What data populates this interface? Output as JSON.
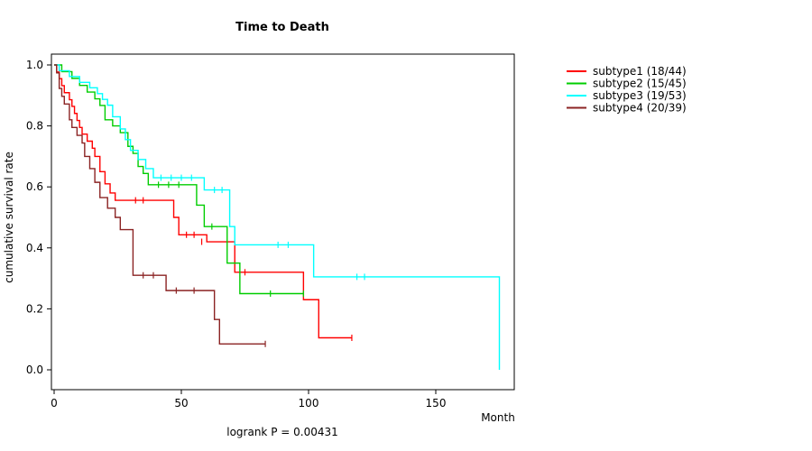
{
  "chart_data": {
    "type": "line",
    "subtype": "kaplan-meier-step-survival",
    "title": "Time to Death",
    "xlabel": "Month",
    "ylabel": "cumulative survival rate",
    "annotation": "logrank P = 0.00431",
    "xlim": [
      0,
      180
    ],
    "ylim": [
      0.0,
      1.0
    ],
    "x_ticks": [
      0,
      50,
      100,
      150
    ],
    "y_ticks": [
      0.0,
      0.2,
      0.4,
      0.6,
      0.8,
      1.0
    ],
    "grid": false,
    "legend_position": "right-outside",
    "axis_color": "#000000",
    "series": [
      {
        "name": "subtype1 (18/44)",
        "color": "#FF0000",
        "end": 117,
        "points": [
          [
            0,
            1.0
          ],
          [
            1,
            0.977
          ],
          [
            2,
            0.955
          ],
          [
            3,
            0.932
          ],
          [
            4,
            0.909
          ],
          [
            6,
            0.886
          ],
          [
            7,
            0.864
          ],
          [
            8,
            0.841
          ],
          [
            9,
            0.818
          ],
          [
            10,
            0.795
          ],
          [
            11,
            0.773
          ],
          [
            13,
            0.75
          ],
          [
            15,
            0.727
          ],
          [
            16,
            0.7
          ],
          [
            18,
            0.65
          ],
          [
            20,
            0.61
          ],
          [
            22,
            0.58
          ],
          [
            24,
            0.556
          ],
          [
            47,
            0.5
          ],
          [
            49,
            0.443
          ],
          [
            60,
            0.42
          ],
          [
            71,
            0.32
          ],
          [
            98,
            0.23
          ],
          [
            104,
            0.105
          ]
        ],
        "censors": [
          [
            32,
            0.556
          ],
          [
            35,
            0.556
          ],
          [
            52,
            0.443
          ],
          [
            55,
            0.443
          ],
          [
            58,
            0.42
          ],
          [
            75,
            0.32
          ],
          [
            117,
            0.105
          ]
        ]
      },
      {
        "name": "subtype2 (15/45)",
        "color": "#00CD00",
        "end": 98,
        "points": [
          [
            0,
            1.0
          ],
          [
            3,
            0.978
          ],
          [
            7,
            0.956
          ],
          [
            10,
            0.933
          ],
          [
            13,
            0.911
          ],
          [
            16,
            0.889
          ],
          [
            18,
            0.867
          ],
          [
            20,
            0.82
          ],
          [
            23,
            0.8
          ],
          [
            26,
            0.778
          ],
          [
            29,
            0.733
          ],
          [
            31,
            0.71
          ],
          [
            33,
            0.667
          ],
          [
            35,
            0.644
          ],
          [
            37,
            0.607
          ],
          [
            56,
            0.54
          ],
          [
            59,
            0.47
          ],
          [
            68,
            0.35
          ],
          [
            73,
            0.25
          ]
        ],
        "censors": [
          [
            41,
            0.607
          ],
          [
            45,
            0.607
          ],
          [
            49,
            0.607
          ],
          [
            62,
            0.47
          ],
          [
            85,
            0.25
          ],
          [
            98,
            0.25
          ]
        ]
      },
      {
        "name": "subtype3 (19/53)",
        "color": "#00FFFF",
        "end": 175,
        "points": [
          [
            0,
            1.0
          ],
          [
            2,
            0.981
          ],
          [
            6,
            0.962
          ],
          [
            10,
            0.943
          ],
          [
            14,
            0.925
          ],
          [
            17,
            0.906
          ],
          [
            19,
            0.887
          ],
          [
            21,
            0.868
          ],
          [
            23,
            0.83
          ],
          [
            26,
            0.79
          ],
          [
            28,
            0.755
          ],
          [
            30,
            0.72
          ],
          [
            33,
            0.69
          ],
          [
            36,
            0.66
          ],
          [
            39,
            0.63
          ],
          [
            59,
            0.59
          ],
          [
            69,
            0.47
          ],
          [
            71,
            0.41
          ],
          [
            102,
            0.305
          ],
          [
            175,
            0.0
          ]
        ],
        "censors": [
          [
            42,
            0.63
          ],
          [
            46,
            0.63
          ],
          [
            50,
            0.63
          ],
          [
            54,
            0.63
          ],
          [
            63,
            0.59
          ],
          [
            66,
            0.59
          ],
          [
            88,
            0.41
          ],
          [
            92,
            0.41
          ],
          [
            119,
            0.305
          ],
          [
            122,
            0.305
          ]
        ]
      },
      {
        "name": "subtype4 (20/39)",
        "color": "#8B2323",
        "end": 83,
        "points": [
          [
            0,
            1.0
          ],
          [
            1,
            0.974
          ],
          [
            2,
            0.923
          ],
          [
            3,
            0.897
          ],
          [
            4,
            0.872
          ],
          [
            6,
            0.82
          ],
          [
            7,
            0.795
          ],
          [
            9,
            0.769
          ],
          [
            11,
            0.744
          ],
          [
            12,
            0.7
          ],
          [
            14,
            0.66
          ],
          [
            16,
            0.615
          ],
          [
            18,
            0.565
          ],
          [
            21,
            0.53
          ],
          [
            24,
            0.5
          ],
          [
            26,
            0.46
          ],
          [
            31,
            0.31
          ],
          [
            44,
            0.26
          ],
          [
            63,
            0.165
          ],
          [
            65,
            0.085
          ]
        ],
        "censors": [
          [
            35,
            0.31
          ],
          [
            39,
            0.31
          ],
          [
            48,
            0.26
          ],
          [
            55,
            0.26
          ],
          [
            83,
            0.085
          ]
        ]
      }
    ]
  }
}
